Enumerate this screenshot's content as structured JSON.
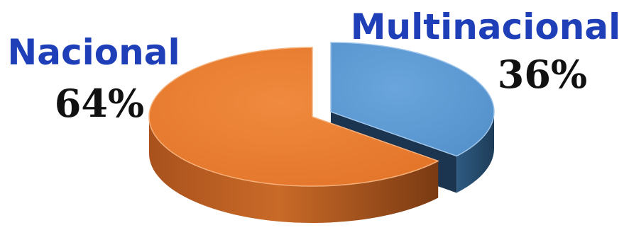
{
  "chart_data": {
    "type": "pie",
    "style": "3d-exploded",
    "categories": [
      "Nacional",
      "Multinacional"
    ],
    "values": [
      64,
      36
    ],
    "value_labels": [
      "64%",
      "36%"
    ],
    "colors": {
      "Nacional": "#ED7D31",
      "Multinacional": "#5B9BD5",
      "category_label": "#1F3FB8",
      "value_label": "#111111"
    }
  }
}
